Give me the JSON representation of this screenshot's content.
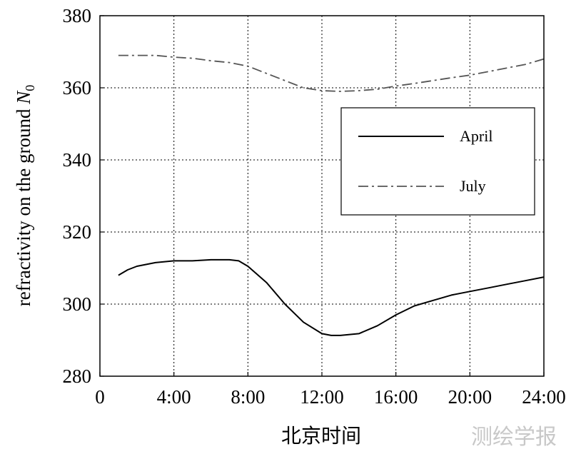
{
  "chart_data": {
    "type": "line",
    "xlabel": "北京时间",
    "ylabel_prefix": "refractivity on the ground ",
    "ylabel_symbol": "N",
    "ylabel_subscript": "0",
    "xlim": [
      0,
      24
    ],
    "ylim": [
      280,
      380
    ],
    "x_ticks": [
      0,
      4,
      8,
      12,
      16,
      20,
      24
    ],
    "x_tick_labels": [
      "0",
      "4:00",
      "8:00",
      "12:00",
      "16:00",
      "20:00",
      "24:00"
    ],
    "y_ticks": [
      280,
      300,
      320,
      340,
      360,
      380
    ],
    "y_tick_labels": [
      "280",
      "300",
      "320",
      "340",
      "360",
      "380"
    ],
    "grid": true,
    "legend_position": "right",
    "series": [
      {
        "name": "April",
        "style": "solid",
        "color": "#000000",
        "x": [
          1,
          1.5,
          2,
          3,
          4,
          5,
          6,
          7,
          7.5,
          8,
          9,
          10,
          11,
          12,
          12.5,
          13,
          14,
          15,
          16,
          17,
          18,
          19,
          20,
          21,
          22,
          23,
          24
        ],
        "y": [
          308,
          309.5,
          310.5,
          311.5,
          312,
          312,
          312.3,
          312.3,
          312,
          310.5,
          306,
          300,
          295,
          291.8,
          291.3,
          291.3,
          291.8,
          294,
          297,
          299.5,
          301,
          302.5,
          303.5,
          304.5,
          305.5,
          306.5,
          307.5
        ]
      },
      {
        "name": "July",
        "style": "dashdot",
        "color": "#555555",
        "x": [
          1,
          2,
          3,
          4,
          5,
          6,
          7,
          8,
          9,
          10,
          11,
          12,
          13,
          14,
          15,
          16,
          17,
          18,
          19,
          20,
          21,
          22,
          23,
          24
        ],
        "y": [
          369,
          369,
          369,
          368.5,
          368.2,
          367.5,
          367,
          366,
          364,
          362,
          360,
          359.2,
          359,
          359.2,
          359.6,
          360.5,
          361.2,
          362,
          362.8,
          363.5,
          364.5,
          365.5,
          366.5,
          368
        ]
      }
    ]
  },
  "watermark": "测绘学报"
}
